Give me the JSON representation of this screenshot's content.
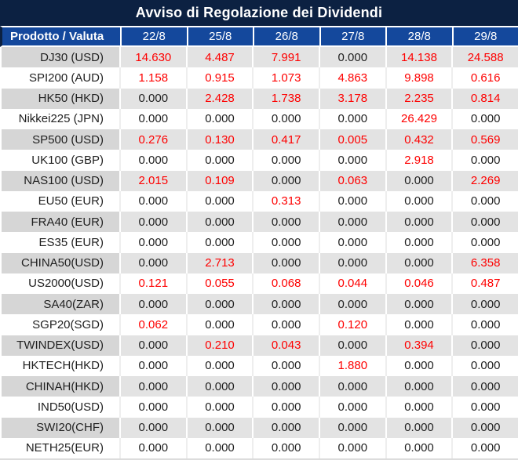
{
  "title": "Avviso di Regolazione dei Dividendi",
  "table": {
    "product_header": "Prodotto / Valuta",
    "date_headers": [
      "22/8",
      "25/8",
      "26/8",
      "27/8",
      "28/8",
      "29/8"
    ],
    "zero_display": "0.000",
    "rows": [
      {
        "product": "DJ30 (USD)",
        "values": [
          "14.630",
          "4.487",
          "7.991",
          "0.000",
          "14.138",
          "24.588"
        ]
      },
      {
        "product": "SPI200 (AUD)",
        "values": [
          "1.158",
          "0.915",
          "1.073",
          "4.863",
          "9.898",
          "0.616"
        ]
      },
      {
        "product": "HK50 (HKD)",
        "values": [
          "0.000",
          "2.428",
          "1.738",
          "3.178",
          "2.235",
          "0.814"
        ]
      },
      {
        "product": "Nikkei225 (JPN)",
        "values": [
          "0.000",
          "0.000",
          "0.000",
          "0.000",
          "26.429",
          "0.000"
        ]
      },
      {
        "product": "SP500 (USD)",
        "values": [
          "0.276",
          "0.130",
          "0.417",
          "0.005",
          "0.432",
          "0.569"
        ]
      },
      {
        "product": "UK100 (GBP)",
        "values": [
          "0.000",
          "0.000",
          "0.000",
          "0.000",
          "2.918",
          "0.000"
        ]
      },
      {
        "product": "NAS100 (USD)",
        "values": [
          "2.015",
          "0.109",
          "0.000",
          "0.063",
          "0.000",
          "2.269"
        ]
      },
      {
        "product": "EU50 (EUR)",
        "values": [
          "0.000",
          "0.000",
          "0.313",
          "0.000",
          "0.000",
          "0.000"
        ]
      },
      {
        "product": "FRA40 (EUR)",
        "values": [
          "0.000",
          "0.000",
          "0.000",
          "0.000",
          "0.000",
          "0.000"
        ]
      },
      {
        "product": "ES35 (EUR)",
        "values": [
          "0.000",
          "0.000",
          "0.000",
          "0.000",
          "0.000",
          "0.000"
        ]
      },
      {
        "product": "CHINA50(USD)",
        "values": [
          "0.000",
          "2.713",
          "0.000",
          "0.000",
          "0.000",
          "6.358"
        ]
      },
      {
        "product": "US2000(USD)",
        "values": [
          "0.121",
          "0.055",
          "0.068",
          "0.044",
          "0.046",
          "0.487"
        ]
      },
      {
        "product": "SA40(ZAR)",
        "values": [
          "0.000",
          "0.000",
          "0.000",
          "0.000",
          "0.000",
          "0.000"
        ]
      },
      {
        "product": "SGP20(SGD)",
        "values": [
          "0.062",
          "0.000",
          "0.000",
          "0.120",
          "0.000",
          "0.000"
        ]
      },
      {
        "product": "TWINDEX(USD)",
        "values": [
          "0.000",
          "0.210",
          "0.043",
          "0.000",
          "0.394",
          "0.000"
        ]
      },
      {
        "product": "HKTECH(HKD)",
        "values": [
          "0.000",
          "0.000",
          "0.000",
          "1.880",
          "0.000",
          "0.000"
        ]
      },
      {
        "product": "CHINAH(HKD)",
        "values": [
          "0.000",
          "0.000",
          "0.000",
          "0.000",
          "0.000",
          "0.000"
        ]
      },
      {
        "product": "IND50(USD)",
        "values": [
          "0.000",
          "0.000",
          "0.000",
          "0.000",
          "0.000",
          "0.000"
        ]
      },
      {
        "product": "SWI20(CHF)",
        "values": [
          "0.000",
          "0.000",
          "0.000",
          "0.000",
          "0.000",
          "0.000"
        ]
      },
      {
        "product": "NETH25(EUR)",
        "values": [
          "0.000",
          "0.000",
          "0.000",
          "0.000",
          "0.000",
          "0.000"
        ]
      }
    ]
  },
  "colors": {
    "title_bg": "#0C2142",
    "header_bg": "#14489C",
    "alt_row_product_bg": "#D6D6D6",
    "alt_row_value_bg": "#E3E3E3",
    "positive_value_text": "#FE0000",
    "zero_value_text": "#212121"
  }
}
